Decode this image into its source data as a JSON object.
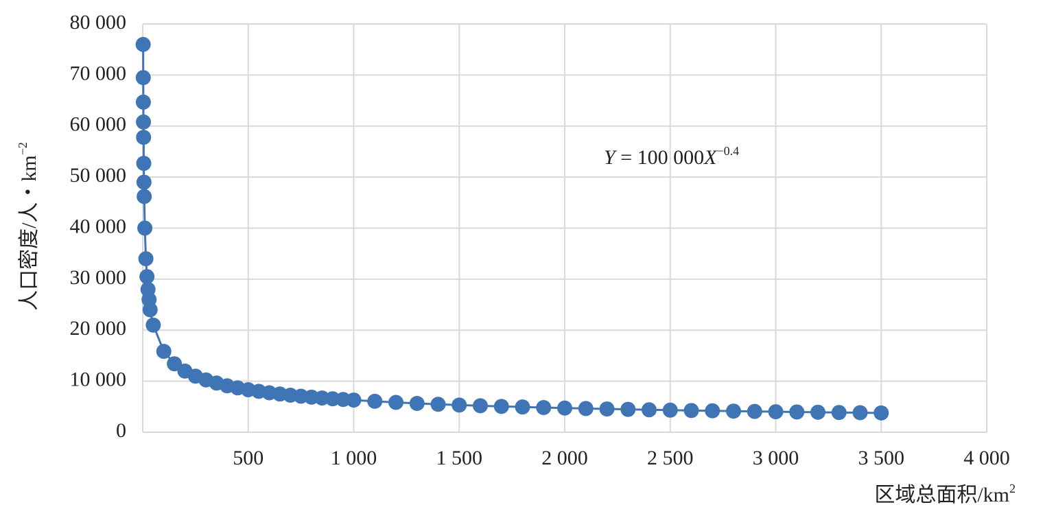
{
  "chart_data": {
    "type": "scatter",
    "x_label": {
      "text": "区域总面积/km",
      "superscript": "2"
    },
    "y_label": {
      "text": "人口密度/人・km",
      "superscript": "−2"
    },
    "annotation": {
      "y": "Y",
      "equals": " = 100 000",
      "x": "X",
      "exponent": "−0.4"
    },
    "xlim": [
      0,
      4000
    ],
    "ylim": [
      0,
      80000
    ],
    "xticks": [
      500,
      {
        "value": 1000,
        "label": "1 000"
      },
      {
        "value": 1500,
        "label": "1 500"
      },
      {
        "value": 2000,
        "label": "2 000"
      },
      {
        "value": 2500,
        "label": "2 500"
      },
      {
        "value": 3000,
        "label": "3 000"
      },
      {
        "value": 3500,
        "label": "3 500"
      },
      {
        "value": 4000,
        "label": "4 000"
      }
    ],
    "yticks": [
      0,
      {
        "value": 10000,
        "label": "10 000"
      },
      {
        "value": 20000,
        "label": "20 000"
      },
      {
        "value": 30000,
        "label": "30 000"
      },
      {
        "value": 40000,
        "label": "40 000"
      },
      {
        "value": 50000,
        "label": "50 000"
      },
      {
        "value": 60000,
        "label": "60 000"
      },
      {
        "value": 70000,
        "label": "70 000"
      },
      {
        "value": 80000,
        "label": "80 000"
      }
    ],
    "grid": true,
    "series": [
      {
        "color": "#3f74b5",
        "x": [
          2,
          2.5,
          3,
          3.5,
          4,
          5,
          6,
          7,
          10,
          15,
          20,
          25,
          30,
          35,
          50,
          100,
          150,
          200,
          250,
          300,
          350,
          400,
          450,
          500,
          550,
          600,
          650,
          700,
          750,
          800,
          850,
          900,
          950,
          1000,
          1100,
          1200,
          1300,
          1400,
          1500,
          1600,
          1700,
          1800,
          1900,
          2000,
          2100,
          2200,
          2300,
          2400,
          2500,
          2600,
          2700,
          2800,
          2900,
          3000,
          3100,
          3200,
          3300,
          3400,
          3500
        ],
        "values": [
          76000,
          69500,
          64700,
          60800,
          57800,
          52700,
          49000,
          46200,
          40000,
          34000,
          30500,
          28000,
          26000,
          24000,
          21000,
          15850,
          13420,
          11980,
          10990,
          10250,
          9640,
          9100,
          8700,
          8330,
          8020,
          7730,
          7490,
          7260,
          7060,
          6880,
          6710,
          6560,
          6420,
          6310,
          6070,
          5850,
          5650,
          5480,
          5330,
          5190,
          5060,
          4950,
          4840,
          4740,
          4650,
          4560,
          4480,
          4400,
          4330,
          4260,
          4200,
          4140,
          4080,
          4020,
          3970,
          3920,
          3870,
          3830,
          3780
        ]
      }
    ]
  }
}
